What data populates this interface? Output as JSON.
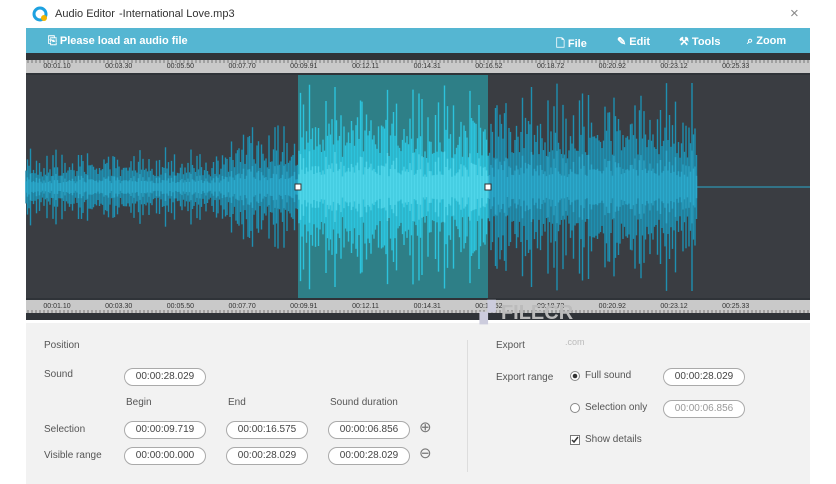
{
  "window": {
    "app_name": "Audio Editor",
    "file_name": "-International Love.mp3"
  },
  "toolbar": {
    "load": "Please load an audio file",
    "menu": [
      "File",
      "Edit",
      "Tools",
      "Zoom"
    ]
  },
  "timeline": [
    "00:01.10",
    "00:03.30",
    "00:05.50",
    "00:07.70",
    "00:09.91",
    "00:12.11",
    "00:14.31",
    "00:16.52",
    "00:18.72",
    "00:20.92",
    "00:23.12",
    "00:25.33"
  ],
  "position": {
    "title": "Position",
    "sound_label": "Sound",
    "sound_value": "00:00:28.029",
    "columns": [
      "Begin",
      "End",
      "Sound duration"
    ],
    "rows": [
      {
        "label": "Selection",
        "values": [
          "00:00:09.719",
          "00:00:16.575",
          "00:00:06.856"
        ]
      },
      {
        "label": "Visible range",
        "values": [
          "00:00:00.000",
          "00:00:28.029",
          "00:00:28.029"
        ]
      }
    ]
  },
  "export": {
    "title": "Export",
    "range_label": "Export range",
    "options": [
      {
        "label": "Full sound",
        "value": "00:00:28.029"
      },
      {
        "label": "Selection only",
        "value": "00:00:06.856"
      }
    ],
    "details": "Show details"
  },
  "watermark": {
    "name": "FILECR",
    "suffix": ".com"
  }
}
